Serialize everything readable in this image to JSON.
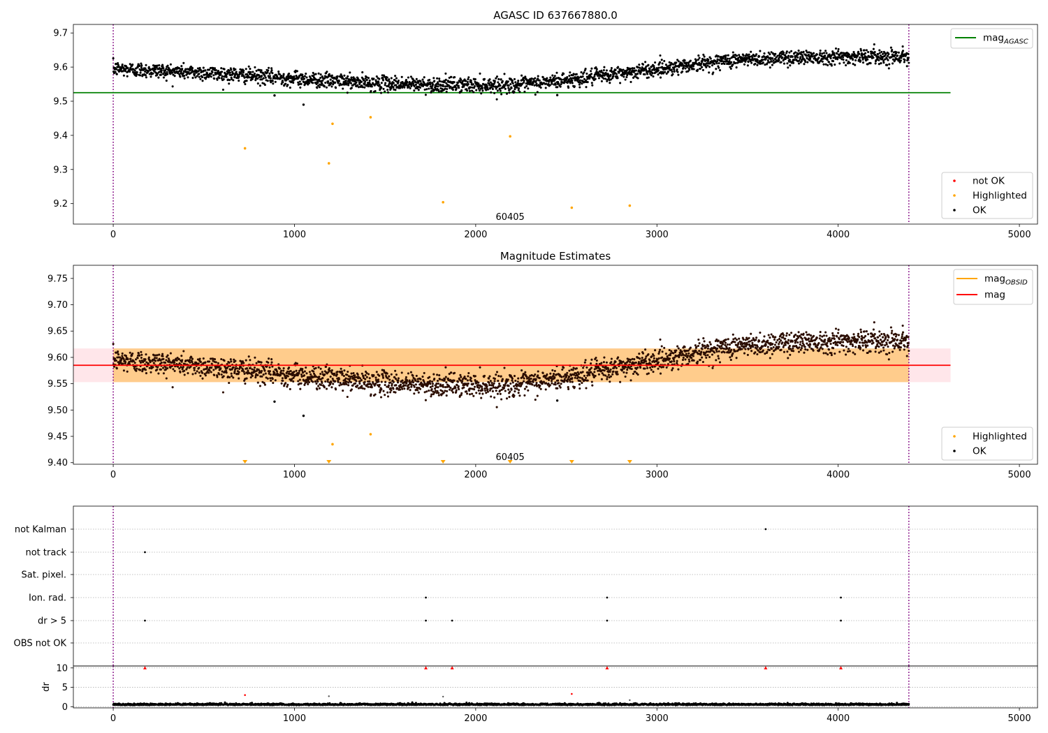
{
  "chart_data": [
    {
      "type": "scatter",
      "title": "AGASC ID 637667880.0",
      "xlim": [
        -220,
        5100
      ],
      "ylim": [
        9.14,
        9.725
      ],
      "xticks": [
        0,
        1000,
        2000,
        3000,
        4000,
        5000
      ],
      "yticks": [
        9.2,
        9.3,
        9.4,
        9.5,
        9.6,
        9.7
      ],
      "ytick_labels": [
        "9.2",
        "9.3",
        "9.4",
        "9.5",
        "9.6",
        "9.7"
      ],
      "vlines": [
        0,
        4390
      ],
      "annotation": {
        "text": "60405",
        "x": 2190,
        "y": 9.16
      },
      "ok_points": {
        "x_start": 0,
        "x_end": 4390,
        "count": 2600,
        "trend": [
          [
            0,
            9.595
          ],
          [
            450,
            9.585
          ],
          [
            900,
            9.57
          ],
          [
            1400,
            9.553
          ],
          [
            1800,
            9.548
          ],
          [
            2250,
            9.548
          ],
          [
            2600,
            9.568
          ],
          [
            3000,
            9.595
          ],
          [
            3400,
            9.62
          ],
          [
            3800,
            9.63
          ],
          [
            4390,
            9.632
          ]
        ],
        "scatter": 0.011
      },
      "ok_outliers": [
        {
          "x": 890,
          "y": 9.517
        },
        {
          "x": 1050,
          "y": 9.49
        },
        {
          "x": 2450,
          "y": 9.518
        }
      ],
      "highlighted": [
        {
          "x": 727,
          "y": 9.362
        },
        {
          "x": 1190,
          "y": 9.318
        },
        {
          "x": 1210,
          "y": 9.434
        },
        {
          "x": 1420,
          "y": 9.453
        },
        {
          "x": 1820,
          "y": 9.204
        },
        {
          "x": 2190,
          "y": 9.397
        },
        {
          "x": 2530,
          "y": 9.188
        },
        {
          "x": 2850,
          "y": 9.194
        }
      ],
      "lines": [
        {
          "name": "mag_AGASC",
          "y": 9.525,
          "x": [
            -220,
            4620
          ],
          "color": "#008000"
        }
      ],
      "legend_upper": [
        {
          "label": "mag",
          "sub": "AGASC",
          "color": "#008000",
          "kind": "line"
        }
      ],
      "legend_lower": [
        {
          "label": "not OK",
          "color": "#ff0000",
          "kind": "dot"
        },
        {
          "label": "Highlighted",
          "color": "#ffa500",
          "kind": "dot"
        },
        {
          "label": "OK",
          "color": "#000000",
          "kind": "dot"
        }
      ]
    },
    {
      "type": "scatter",
      "title": "Magnitude Estimates",
      "xlim": [
        -220,
        5100
      ],
      "ylim": [
        9.397,
        9.775
      ],
      "xticks": [
        0,
        1000,
        2000,
        3000,
        4000,
        5000
      ],
      "yticks": [
        9.4,
        9.45,
        9.5,
        9.55,
        9.6,
        9.65,
        9.7,
        9.75
      ],
      "ytick_labels": [
        "9.40",
        "9.45",
        "9.50",
        "9.55",
        "9.60",
        "9.65",
        "9.70",
        "9.75"
      ],
      "vlines": [
        0,
        4390
      ],
      "annotation": {
        "text": "60405",
        "x": 2190,
        "y": 9.41
      },
      "ok_points": {
        "x_start": 0,
        "x_end": 4390,
        "count": 2600,
        "trend": [
          [
            0,
            9.595
          ],
          [
            450,
            9.585
          ],
          [
            900,
            9.57
          ],
          [
            1400,
            9.553
          ],
          [
            1800,
            9.548
          ],
          [
            2250,
            9.548
          ],
          [
            2600,
            9.568
          ],
          [
            3000,
            9.595
          ],
          [
            3400,
            9.62
          ],
          [
            3800,
            9.63
          ],
          [
            4390,
            9.632
          ]
        ],
        "scatter": 0.011
      },
      "ok_outliers": [
        {
          "x": 890,
          "y": 9.516
        },
        {
          "x": 1050,
          "y": 9.489
        },
        {
          "x": 2450,
          "y": 9.518
        }
      ],
      "highlighted": [
        {
          "x": 1210,
          "y": 9.435
        },
        {
          "x": 1420,
          "y": 9.454
        }
      ],
      "offscale_markers": [
        727,
        1190,
        1820,
        2190,
        2530,
        2850
      ],
      "bands": [
        {
          "y0": 9.553,
          "y1": 9.617,
          "x": [
            -220,
            4620
          ],
          "color": "#ffc0cb"
        },
        {
          "y0": 9.553,
          "y1": 9.617,
          "x": [
            0,
            4390
          ],
          "color": "#ffa500"
        }
      ],
      "lines": [
        {
          "name": "mag",
          "y": 9.585,
          "x": [
            -220,
            4620
          ],
          "color": "#ff0000"
        }
      ],
      "legend_upper": [
        {
          "label": "mag",
          "sub": "OBSID",
          "color": "#ffa500",
          "kind": "line"
        },
        {
          "label": "mag",
          "sub": "",
          "color": "#ff0000",
          "kind": "line"
        }
      ],
      "legend_lower": [
        {
          "label": "Highlighted",
          "color": "#ffa500",
          "kind": "dot"
        },
        {
          "label": "OK",
          "color": "#000000",
          "kind": "dot"
        }
      ]
    },
    {
      "type": "scatter",
      "title": "",
      "xlim": [
        -220,
        5100
      ],
      "xticks": [
        0,
        1000,
        2000,
        3000,
        4000,
        5000
      ],
      "vlines": [
        0,
        4390
      ],
      "flag_rows": [
        "not Kalman",
        "not track",
        "Sat. pixel.",
        "Ion. rad.",
        "dr > 5",
        "OBS not OK"
      ],
      "flags": [
        {
          "row": "not Kalman",
          "x": [
            3600
          ]
        },
        {
          "row": "not track",
          "x": [
            175
          ]
        },
        {
          "row": "Sat. pixel.",
          "x": []
        },
        {
          "row": "Ion. rad.",
          "x": [
            1725,
            2725,
            4015
          ]
        },
        {
          "row": "dr > 5",
          "x": [
            175,
            1725,
            1870,
            2725,
            4015
          ]
        },
        {
          "row": "OBS not OK",
          "x": []
        }
      ],
      "dr": {
        "ylabel": "dr",
        "ylim": [
          -0.3,
          10.5
        ],
        "yticks": [
          0,
          5,
          10
        ],
        "ytick_labels": [
          "0",
          "5",
          "10"
        ],
        "baseline": {
          "mean": 0.45,
          "scatter": 0.2
        },
        "clipped_red": [
          175,
          1725,
          1870,
          2725,
          3600,
          4015
        ],
        "red_points": [
          {
            "x": 727,
            "y": 3.0
          },
          {
            "x": 2530,
            "y": 3.3
          }
        ],
        "gray_points": [
          {
            "x": 1190,
            "y": 2.7
          },
          {
            "x": 1820,
            "y": 2.6
          },
          {
            "x": 2850,
            "y": 1.7
          }
        ]
      }
    }
  ]
}
